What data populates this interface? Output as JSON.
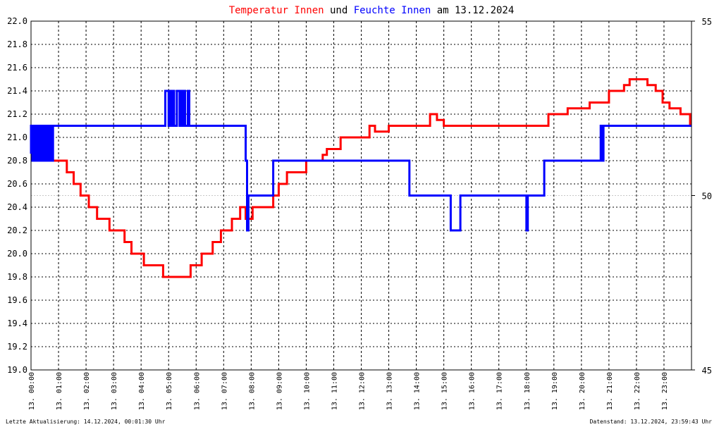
{
  "title": {
    "part1": "Temperatur Innen",
    "part2": " und ",
    "part3": "Feuchte Innen",
    "part4": " am 13.12.2024",
    "color1": "#ff0000",
    "color2": "#000000",
    "color3": "#0000ff"
  },
  "footer": {
    "left": "Letzte Aktualisierung: 14.12.2024, 00:01:30 Uhr",
    "right": "Datenstand: 13.12.2024, 23:59:43 Uhr"
  },
  "chart_data": {
    "type": "line",
    "title": "Temperatur Innen und Feuchte Innen am 13.12.2024",
    "x_range_hours": [
      0,
      24
    ],
    "x_ticks": [
      "13. 00:00",
      "13. 01:00",
      "13. 02:00",
      "13. 03:00",
      "13. 04:00",
      "13. 05:00",
      "13. 06:00",
      "13. 07:00",
      "13. 08:00",
      "13. 09:00",
      "13. 10:00",
      "13. 11:00",
      "13. 12:00",
      "13. 13:00",
      "13. 14:00",
      "13. 15:00",
      "13. 16:00",
      "13. 17:00",
      "13. 18:00",
      "13. 19:00",
      "13. 20:00",
      "13. 21:00",
      "13. 22:00",
      "13. 23:00"
    ],
    "y_left": {
      "ylim": [
        19.0,
        22.0
      ],
      "ticks": [
        "19.0",
        "19.2",
        "19.4",
        "19.6",
        "19.8",
        "20.0",
        "20.2",
        "20.4",
        "20.6",
        "20.8",
        "21.0",
        "21.2",
        "21.4",
        "21.6",
        "21.8",
        "22.0"
      ],
      "color": "#ff0000"
    },
    "y_right": {
      "ylim": [
        45,
        55
      ],
      "ticks": [
        "45",
        "50",
        "55"
      ],
      "color": "#0000ff"
    },
    "grid": true,
    "series": [
      {
        "name": "Temperatur Innen",
        "axis": "left",
        "color": "#ff0000",
        "x": [
          0,
          0.75,
          0.78,
          1.0,
          1.3,
          1.55,
          1.8,
          2.1,
          2.4,
          2.85,
          3.05,
          3.4,
          3.65,
          4.0,
          4.1,
          4.7,
          4.8,
          5.0,
          5.55,
          5.8,
          5.95,
          6.2,
          6.6,
          6.9,
          7.3,
          7.6,
          7.8,
          8.05,
          8.3,
          8.8,
          9.0,
          9.3,
          9.55,
          10.0,
          10.45,
          10.6,
          10.75,
          11.0,
          11.25,
          11.5,
          12.3,
          12.5,
          13.0,
          14.1,
          14.5,
          14.75,
          15.0,
          15.6,
          16.5,
          18.0,
          18.5,
          18.8,
          19.0,
          19.5,
          20.0,
          20.3,
          20.5,
          20.8,
          21.0,
          21.4,
          21.55,
          21.75,
          22.4,
          22.7,
          22.95,
          23.2,
          23.6,
          23.95
        ],
        "values": [
          20.9,
          20.9,
          20.8,
          20.8,
          20.7,
          20.6,
          20.5,
          20.4,
          20.3,
          20.2,
          20.2,
          20.1,
          20.0,
          20.0,
          19.9,
          19.9,
          19.8,
          19.8,
          19.8,
          19.9,
          19.9,
          20.0,
          20.1,
          20.2,
          20.3,
          20.4,
          20.3,
          20.4,
          20.4,
          20.5,
          20.6,
          20.7,
          20.7,
          20.8,
          20.8,
          20.85,
          20.9,
          20.9,
          21.0,
          21.0,
          21.1,
          21.05,
          21.1,
          21.1,
          21.2,
          21.15,
          21.1,
          21.1,
          21.1,
          21.1,
          21.1,
          21.2,
          21.2,
          21.25,
          21.25,
          21.3,
          21.3,
          21.3,
          21.4,
          21.4,
          21.45,
          21.5,
          21.45,
          21.4,
          21.3,
          21.25,
          21.2,
          21.1
        ]
      },
      {
        "name": "Feuchte Innen",
        "axis": "right",
        "color": "#0000ff",
        "x": [
          0,
          0.0,
          0.05,
          0.1,
          0.15,
          0.2,
          0.25,
          0.3,
          0.35,
          0.4,
          0.45,
          0.5,
          0.55,
          0.6,
          0.65,
          0.7,
          0.75,
          0.8,
          4.85,
          4.88,
          5.0,
          5.05,
          5.1,
          5.15,
          5.2,
          5.3,
          5.4,
          5.45,
          5.5,
          5.55,
          5.6,
          5.7,
          5.75,
          5.8,
          7.75,
          7.8,
          7.85,
          7.9,
          8.0,
          8.75,
          8.8,
          13.7,
          13.75,
          15.2,
          15.25,
          15.55,
          15.6,
          17.95,
          18.0,
          18.05,
          18.6,
          18.65,
          20.65,
          20.7,
          20.75,
          20.8,
          20.9,
          23.99
        ],
        "values": [
          51.2,
          52.0,
          51.0,
          52.0,
          51.0,
          52.0,
          51.0,
          52.0,
          51.0,
          52.0,
          51.0,
          52.0,
          51.0,
          52.0,
          51.0,
          52.0,
          51.0,
          52.0,
          52.0,
          53.0,
          52.0,
          53.0,
          52.0,
          53.0,
          52.0,
          53.0,
          52.0,
          53.0,
          52.0,
          53.0,
          52.0,
          53.0,
          52.0,
          52.0,
          52.0,
          51.0,
          49.0,
          50.0,
          50.0,
          50.0,
          51.0,
          51.0,
          50.0,
          50.0,
          49.0,
          49.0,
          50.0,
          50.0,
          49.0,
          50.0,
          50.0,
          51.0,
          51.0,
          52.0,
          51.0,
          52.0,
          52.0,
          52.0
        ]
      }
    ]
  }
}
